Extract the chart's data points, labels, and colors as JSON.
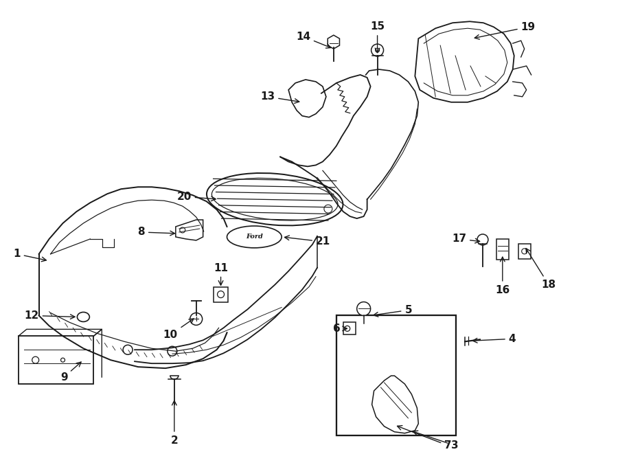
{
  "bg_color": "#ffffff",
  "line_color": "#1a1a1a",
  "fig_width": 9.0,
  "fig_height": 6.61,
  "dpi": 100,
  "label_fs": 11,
  "arrow_lw": 1.0,
  "part_lw": 1.1
}
